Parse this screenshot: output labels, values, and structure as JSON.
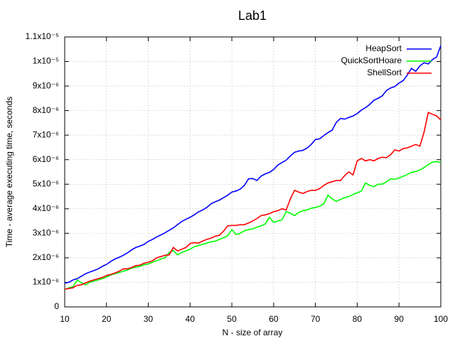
{
  "chart_data": {
    "type": "line",
    "title": "Lab1",
    "x_label": "N - size of array",
    "y_label": "Time - average executing time, seconds",
    "x": [
      10,
      11,
      12,
      13,
      14,
      15,
      16,
      17,
      18,
      19,
      20,
      21,
      22,
      23,
      24,
      25,
      26,
      27,
      28,
      29,
      30,
      31,
      32,
      33,
      34,
      35,
      36,
      37,
      38,
      39,
      40,
      41,
      42,
      43,
      44,
      45,
      46,
      47,
      48,
      49,
      50,
      51,
      52,
      53,
      54,
      55,
      56,
      57,
      58,
      59,
      60,
      61,
      62,
      63,
      64,
      65,
      66,
      67,
      68,
      69,
      70,
      71,
      72,
      73,
      74,
      75,
      76,
      77,
      78,
      79,
      80,
      81,
      82,
      83,
      84,
      85,
      86,
      87,
      88,
      89,
      90,
      91,
      92,
      93,
      94,
      95,
      96,
      97,
      98,
      99,
      100
    ],
    "series": [
      {
        "name": "HeapSort",
        "color": "#0000ff",
        "values": [
          9.7e-07,
          1e-06,
          1.1e-06,
          1.15e-06,
          1.25e-06,
          1.35e-06,
          1.42e-06,
          1.48e-06,
          1.55e-06,
          1.65e-06,
          1.73e-06,
          1.85e-06,
          1.95e-06,
          2.02e-06,
          2.1e-06,
          2.2e-06,
          2.32e-06,
          2.42e-06,
          2.48e-06,
          2.55e-06,
          2.67e-06,
          2.75e-06,
          2.85e-06,
          2.93e-06,
          3.02e-06,
          3.12e-06,
          3.22e-06,
          3.35e-06,
          3.48e-06,
          3.57e-06,
          3.65e-06,
          3.75e-06,
          3.87e-06,
          3.95e-06,
          4.05e-06,
          4.2e-06,
          4.28e-06,
          4.35e-06,
          4.45e-06,
          4.55e-06,
          4.68e-06,
          4.72e-06,
          4.8e-06,
          4.95e-06,
          5.22e-06,
          5.23e-06,
          5.15e-06,
          5.33e-06,
          5.42e-06,
          5.48e-06,
          5.6e-06,
          5.78e-06,
          5.88e-06,
          5.98e-06,
          6.15e-06,
          6.3e-06,
          6.35e-06,
          6.38e-06,
          6.47e-06,
          6.62e-06,
          6.82e-06,
          6.85e-06,
          6.98e-06,
          7.1e-06,
          7.2e-06,
          7.52e-06,
          7.68e-06,
          7.65e-06,
          7.72e-06,
          7.78e-06,
          7.88e-06,
          8.02e-06,
          8.12e-06,
          8.25e-06,
          8.42e-06,
          8.5e-06,
          8.6e-06,
          8.82e-06,
          8.92e-06,
          8.98e-06,
          9.12e-06,
          9.22e-06,
          9.45e-06,
          9.72e-06,
          9.6e-06,
          9.82e-06,
          9.95e-06,
          9.9e-06,
          1.008e-05,
          1.018e-05,
          1.065e-05
        ]
      },
      {
        "name": "QuickSortHoare",
        "color": "#00ff00",
        "values": [
          7e-07,
          7.8e-07,
          8.2e-07,
          1.1e-06,
          9.8e-07,
          9e-07,
          1e-06,
          1.05e-06,
          1.1e-06,
          1.15e-06,
          1.22e-06,
          1.3e-06,
          1.35e-06,
          1.4e-06,
          1.45e-06,
          1.5e-06,
          1.58e-06,
          1.62e-06,
          1.65e-06,
          1.72e-06,
          1.75e-06,
          1.82e-06,
          1.88e-06,
          1.95e-06,
          2e-06,
          2.22e-06,
          2.3e-06,
          2.12e-06,
          2.22e-06,
          2.28e-06,
          2.35e-06,
          2.45e-06,
          2.5e-06,
          2.55e-06,
          2.6e-06,
          2.65e-06,
          2.68e-06,
          2.75e-06,
          2.82e-06,
          2.9e-06,
          3.15e-06,
          2.95e-06,
          3e-06,
          3.1e-06,
          3.15e-06,
          3.18e-06,
          3.25e-06,
          3.3e-06,
          3.38e-06,
          3.65e-06,
          3.45e-06,
          3.5e-06,
          3.55e-06,
          3.88e-06,
          3.82e-06,
          3.72e-06,
          3.85e-06,
          3.92e-06,
          3.95e-06,
          4.02e-06,
          4.05e-06,
          4.1e-06,
          4.2e-06,
          4.55e-06,
          4.4e-06,
          4.3e-06,
          4.38e-06,
          4.45e-06,
          4.5e-06,
          4.58e-06,
          4.65e-06,
          4.72e-06,
          5.05e-06,
          4.95e-06,
          4.9e-06,
          5e-06,
          5e-06,
          5.1e-06,
          5.22e-06,
          5.2e-06,
          5.25e-06,
          5.32e-06,
          5.4e-06,
          5.48e-06,
          5.52e-06,
          5.58e-06,
          5.68e-06,
          5.8e-06,
          5.9e-06,
          5.92e-06,
          5.88e-06
        ]
      },
      {
        "name": "ShellSort",
        "color": "#ff0000",
        "values": [
          7.2e-07,
          7.5e-07,
          7.8e-07,
          8.8e-07,
          9e-07,
          9.8e-07,
          1.05e-06,
          1.1e-06,
          1.15e-06,
          1.2e-06,
          1.28e-06,
          1.32e-06,
          1.38e-06,
          1.45e-06,
          1.55e-06,
          1.55e-06,
          1.6e-06,
          1.68e-06,
          1.7e-06,
          1.78e-06,
          1.82e-06,
          1.88e-06,
          2e-06,
          2.05e-06,
          2.1e-06,
          2.12e-06,
          2.42e-06,
          2.28e-06,
          2.35e-06,
          2.42e-06,
          2.58e-06,
          2.62e-06,
          2.6e-06,
          2.68e-06,
          2.75e-06,
          2.8e-06,
          2.88e-06,
          2.92e-06,
          3.08e-06,
          3.3e-06,
          3.32e-06,
          3.32e-06,
          3.35e-06,
          3.35e-06,
          3.42e-06,
          3.5e-06,
          3.6e-06,
          3.72e-06,
          3.75e-06,
          3.8e-06,
          3.88e-06,
          3.92e-06,
          4e-06,
          3.95e-06,
          4.4e-06,
          4.75e-06,
          4.68e-06,
          4.62e-06,
          4.7e-06,
          4.75e-06,
          4.75e-06,
          4.82e-06,
          4.95e-06,
          5.05e-06,
          5.1e-06,
          5.15e-06,
          5.15e-06,
          5.35e-06,
          5.5e-06,
          5.38e-06,
          5.95e-06,
          6.05e-06,
          5.95e-06,
          6e-06,
          5.95e-06,
          6.05e-06,
          6.1e-06,
          6.08e-06,
          6.2e-06,
          6.4e-06,
          6.35e-06,
          6.45e-06,
          6.48e-06,
          6.55e-06,
          6.62e-06,
          6.55e-06,
          7.12e-06,
          7.92e-06,
          7.85e-06,
          7.78e-06,
          7.62e-06
        ]
      }
    ],
    "xlim": [
      10,
      100
    ],
    "xticks": [
      10,
      20,
      30,
      40,
      50,
      60,
      70,
      80,
      90,
      100
    ],
    "ylim": [
      0,
      1.1e-05
    ],
    "yticks": [
      0,
      {
        "value": 1e-06,
        "label": "1x10⁻⁶"
      },
      {
        "value": 2e-06,
        "label": "2x10⁻⁶"
      },
      {
        "value": 3e-06,
        "label": "3x10⁻⁶"
      },
      {
        "value": 4e-06,
        "label": "4x10⁻⁶"
      },
      {
        "value": 5e-06,
        "label": "5x10⁻⁶"
      },
      {
        "value": 6e-06,
        "label": "6x10⁻⁶"
      },
      {
        "value": 7e-06,
        "label": "7x10⁻⁶"
      },
      {
        "value": 8e-06,
        "label": "8x10⁻⁶"
      },
      {
        "value": 9e-06,
        "label": "9x10⁻⁶"
      },
      {
        "value": 1e-05,
        "label": "1x10⁻⁵"
      },
      {
        "value": 1.1e-05,
        "label": "1.1x10⁻⁵"
      }
    ],
    "grid": true,
    "legend": "top-right"
  }
}
